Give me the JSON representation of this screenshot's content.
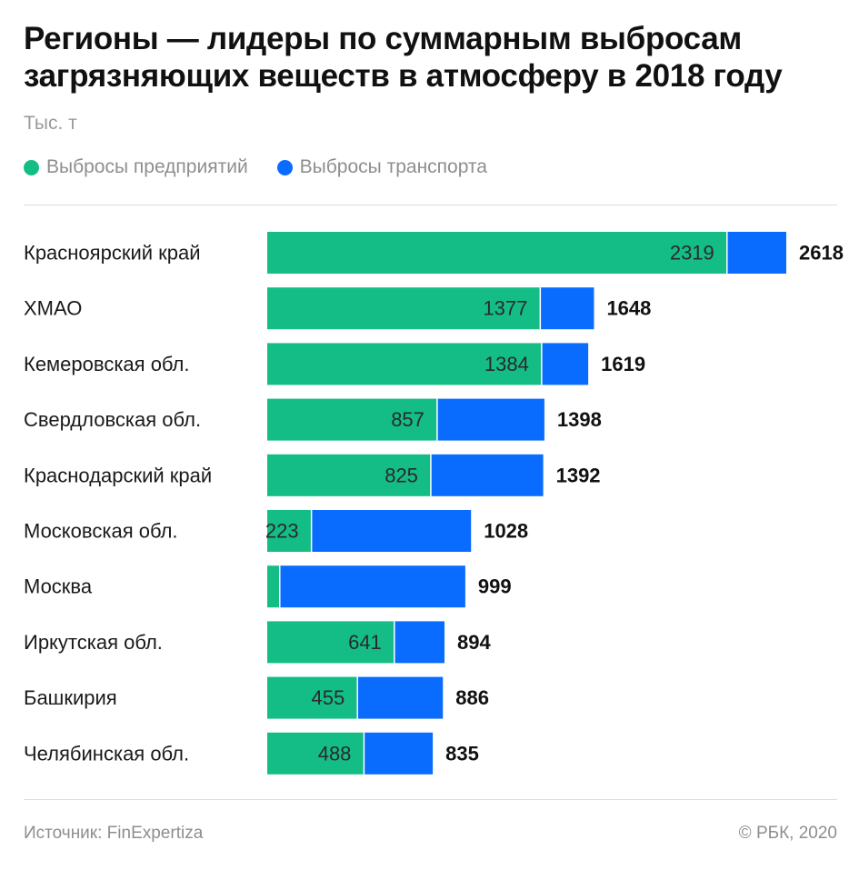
{
  "title": "Регионы — лидеры по суммарным выбросам загрязняющих веществ в атмосферу в 2018 году",
  "unit": "Тыс. т",
  "legend": [
    {
      "label": "Выбросы предприятий",
      "color": "#14bd85"
    },
    {
      "label": "Выбросы транспорта",
      "color": "#0a6cff"
    }
  ],
  "chart_data": {
    "type": "bar",
    "orientation": "horizontal",
    "stacked": true,
    "title": "Регионы — лидеры по суммарным выбросам загрязняющих веществ в атмосферу в 2018 году",
    "unit": "Тыс. т",
    "categories": [
      "Красноярский край",
      "ХМАО",
      "Кемеровская обл.",
      "Свердловская обл.",
      "Краснодарский край",
      "Московская обл.",
      "Москва",
      "Иркутская обл.",
      "Башкирия",
      "Челябинская обл."
    ],
    "series": [
      {
        "name": "Выбросы предприятий",
        "color": "#14bd85",
        "values": [
          2319,
          1377,
          1384,
          857,
          825,
          223,
          63,
          641,
          455,
          488
        ],
        "labels": [
          "2319",
          "1377",
          "1384",
          "857",
          "825",
          "223",
          "",
          "641",
          "455",
          "488"
        ]
      },
      {
        "name": "Выбросы транспорта",
        "color": "#0a6cff",
        "values": [
          299,
          271,
          235,
          541,
          567,
          805,
          936,
          253,
          431,
          347
        ]
      }
    ],
    "totals": [
      2618,
      1648,
      1619,
      1398,
      1392,
      1028,
      999,
      894,
      886,
      835
    ],
    "xlim": [
      0,
      2618
    ]
  },
  "source": "Источник: FinExpertiza",
  "copyright": "© РБК, 2020"
}
